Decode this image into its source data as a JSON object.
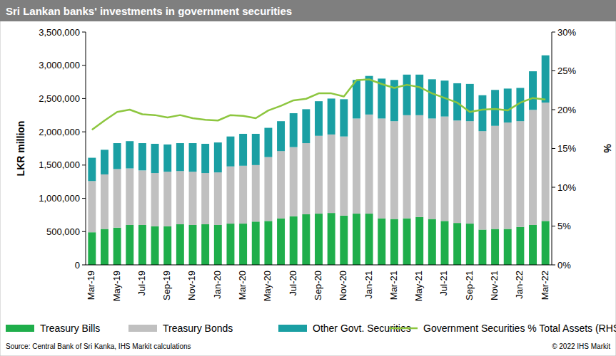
{
  "chart_data": {
    "type": "bar",
    "title": "Sri Lankan banks' investments in government securities",
    "y_label": "LKR million",
    "y2_label": "%",
    "annotations": [
      "Source: Central Bank of Sri Kanka, IHS Markit calculations",
      "© 2022 IHS Markit"
    ],
    "stacked": true,
    "legend": "bottom",
    "grid": false,
    "categories": [
      "Mar-19",
      null,
      "May-19",
      null,
      "Jul-19",
      null,
      "Sep-19",
      null,
      "Nov-19",
      null,
      "Jan-20",
      null,
      "Mar-20",
      null,
      "May-20",
      null,
      "Jul-20",
      null,
      "Sep-20",
      null,
      "Nov-20",
      null,
      "Jan-21",
      null,
      "Mar-21",
      null,
      "May-21",
      null,
      "Jul-21",
      null,
      "Sep-21",
      null,
      "Nov-21",
      null,
      "Jan-22",
      null,
      "Mar-22"
    ],
    "series": [
      {
        "name": "Treasury Bills",
        "type": "bar",
        "color": "#1fae4b",
        "values": [
          490000,
          540000,
          560000,
          600000,
          600000,
          580000,
          580000,
          610000,
          600000,
          610000,
          600000,
          620000,
          620000,
          650000,
          660000,
          700000,
          730000,
          760000,
          770000,
          780000,
          740000,
          770000,
          770000,
          700000,
          690000,
          700000,
          720000,
          690000,
          660000,
          630000,
          620000,
          530000,
          540000,
          540000,
          570000,
          600000,
          660000
        ]
      },
      {
        "name": "Treasury Bonds",
        "type": "bar",
        "color": "#c0c0c0",
        "values": [
          770000,
          820000,
          880000,
          850000,
          820000,
          800000,
          820000,
          800000,
          800000,
          770000,
          790000,
          860000,
          870000,
          850000,
          960000,
          1010000,
          1040000,
          1070000,
          1170000,
          1180000,
          1190000,
          1430000,
          1490000,
          1500000,
          1470000,
          1550000,
          1530000,
          1510000,
          1570000,
          1540000,
          1540000,
          1480000,
          1550000,
          1600000,
          1590000,
          1730000,
          1780000
        ]
      },
      {
        "name": "Other Govt. Securities",
        "type": "bar",
        "color": "#1a9fa3",
        "values": [
          350000,
          370000,
          390000,
          410000,
          410000,
          440000,
          410000,
          420000,
          430000,
          440000,
          450000,
          450000,
          480000,
          470000,
          440000,
          450000,
          510000,
          510000,
          520000,
          540000,
          560000,
          580000,
          580000,
          600000,
          620000,
          610000,
          610000,
          590000,
          540000,
          560000,
          560000,
          540000,
          540000,
          510000,
          500000,
          580000,
          710000
        ]
      },
      {
        "name": "Government Securities % Total Assets (RHS)",
        "type": "line",
        "axis": "y2",
        "color": "#8dc63f",
        "values": [
          17.4,
          18.6,
          19.7,
          20.0,
          19.4,
          19.3,
          19.0,
          19.3,
          18.9,
          18.7,
          18.6,
          19.3,
          19.2,
          18.9,
          19.9,
          20.5,
          21.2,
          21.4,
          22.1,
          22.1,
          21.7,
          23.8,
          23.9,
          23.3,
          22.8,
          23.2,
          22.9,
          22.1,
          21.5,
          20.9,
          19.7,
          20.0,
          20.1,
          19.9,
          20.9,
          21.5,
          21.3
        ]
      }
    ],
    "ylim": [
      0,
      3500000
    ],
    "yticks": [
      0,
      {
        "value": 500000,
        "label": "500,000"
      },
      {
        "value": 1000000,
        "label": "1,000,000"
      },
      {
        "value": 1500000,
        "label": "1,500,000"
      },
      {
        "value": 2000000,
        "label": "2,000,000"
      },
      {
        "value": 2500000,
        "label": "2,500,000"
      },
      {
        "value": 3000000,
        "label": "3,000,000"
      },
      {
        "value": 3500000,
        "label": "3,500,000"
      }
    ],
    "y2lim": [
      0,
      30
    ],
    "y2ticks": [
      {
        "value": 0,
        "label": "0%"
      },
      {
        "value": 5,
        "label": "5%"
      },
      {
        "value": 10,
        "label": "10%"
      },
      {
        "value": 15,
        "label": "15%"
      },
      {
        "value": 20,
        "label": "20%"
      },
      {
        "value": 25,
        "label": "25%"
      },
      {
        "value": 30,
        "label": "30%"
      }
    ]
  }
}
